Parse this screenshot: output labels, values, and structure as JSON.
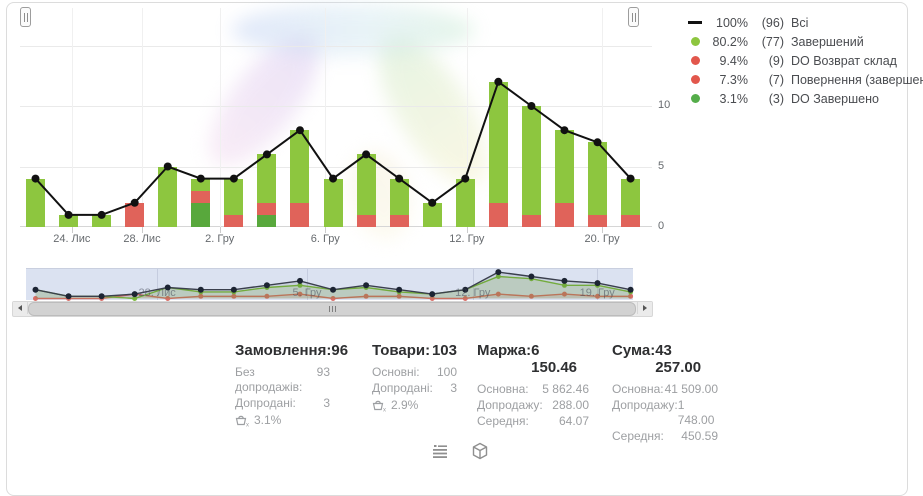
{
  "legend": {
    "items": [
      {
        "symbol": "line",
        "color": "#111111",
        "percent": "100%",
        "count": "(96)",
        "label": "Всі"
      },
      {
        "symbol": "dot",
        "color": "#8dc63f",
        "percent": "80.2%",
        "count": "(77)",
        "label": "Завершений"
      },
      {
        "symbol": "dot",
        "color": "#e2574c",
        "percent": "9.4%",
        "count": "(9)",
        "label": "DO Возврат склад"
      },
      {
        "symbol": "dot",
        "color": "#e2574c",
        "percent": "7.3%",
        "count": "(7)",
        "label": "Повернення (завершений)"
      },
      {
        "symbol": "dot",
        "color": "#55ad4a",
        "percent": "3.1%",
        "count": "(3)",
        "label": "DO Завершено"
      }
    ]
  },
  "chart_data": {
    "type": "bar",
    "stacked": true,
    "overlay_line": true,
    "n_categories": 19,
    "series": [
      {
        "name": "Завершений",
        "color": "#8dc63f",
        "values": [
          4,
          1,
          1,
          0,
          5,
          1,
          3,
          4,
          6,
          4,
          5,
          3,
          2,
          4,
          10,
          9,
          6,
          6,
          3
        ]
      },
      {
        "name": "Повернення / DO Возврат склад",
        "color": "#e0635a",
        "values": [
          0,
          0,
          0,
          2,
          0,
          1,
          1,
          1,
          2,
          0,
          1,
          1,
          0,
          0,
          2,
          1,
          2,
          1,
          1
        ]
      },
      {
        "name": "DO Завершено",
        "color": "#58a83c",
        "values": [
          0,
          0,
          0,
          0,
          0,
          2,
          0,
          1,
          0,
          0,
          0,
          0,
          0,
          0,
          0,
          0,
          0,
          0,
          0
        ]
      }
    ],
    "stack_order_bottom_to_top": [
      2,
      1,
      0
    ],
    "line": {
      "name": "Всі",
      "color": "#111111",
      "values": [
        4,
        1,
        1,
        2,
        5,
        4,
        4,
        6,
        8,
        4,
        6,
        4,
        2,
        4,
        12,
        10,
        8,
        7,
        4
      ]
    },
    "y_axis": {
      "ticks": [
        0,
        5,
        10
      ],
      "grid": [
        5,
        10,
        15
      ],
      "max": 15,
      "position": "right"
    },
    "x_axis": {
      "tick_labels": [
        {
          "text": "24. Лис",
          "pos": 0.082
        },
        {
          "text": "28. Лис",
          "pos": 0.193
        },
        {
          "text": "2. Гру",
          "pos": 0.316
        },
        {
          "text": "6. Гру",
          "pos": 0.483
        },
        {
          "text": "12. Гру",
          "pos": 0.707
        },
        {
          "text": "20. Гру",
          "pos": 0.921
        }
      ]
    },
    "legend_position": "top-right",
    "grid": true
  },
  "navigator": {
    "tick_labels": [
      {
        "text": "28. Лис",
        "pos": 0.216
      },
      {
        "text": "5. Гру",
        "pos": 0.463
      },
      {
        "text": "12. Гру",
        "pos": 0.736
      },
      {
        "text": "19. Гру",
        "pos": 0.941
      }
    ],
    "background": "#dbe2f1"
  },
  "stats": {
    "columns": [
      {
        "title": "Замовлення:",
        "value": "96",
        "rows": [
          {
            "label": "Без допродажів:",
            "value": "93"
          },
          {
            "label": "Допродані:",
            "value": "3"
          }
        ],
        "basket_percent": "3.1%"
      },
      {
        "title": "Товари:",
        "value": "103",
        "rows": [
          {
            "label": "Основні:",
            "value": "100"
          },
          {
            "label": "Допродані:",
            "value": "3"
          }
        ],
        "basket_percent": "2.9%"
      },
      {
        "title": "Маржа:",
        "value": "6 150.46",
        "rows": [
          {
            "label": "Основна:",
            "value": "5 862.46"
          },
          {
            "label": "Допродажу:",
            "value": "288.00"
          },
          {
            "label": "Середня:",
            "value": "64.07"
          }
        ]
      },
      {
        "title": "Сума:",
        "value": "43 257.00",
        "rows": [
          {
            "label": "Основна:",
            "value": "41 509.00"
          },
          {
            "label": "Допродажу:",
            "value": "1 748.00"
          },
          {
            "label": "Середня:",
            "value": "450.59"
          }
        ]
      }
    ]
  },
  "colors": {
    "bar_green": "#8dc63f",
    "bar_red": "#e0635a",
    "bar_dark_green": "#58a83c",
    "line_black": "#111111",
    "nav_black": "#1c2433",
    "nav_green": "#7cb93e",
    "nav_red": "#d96d66"
  }
}
